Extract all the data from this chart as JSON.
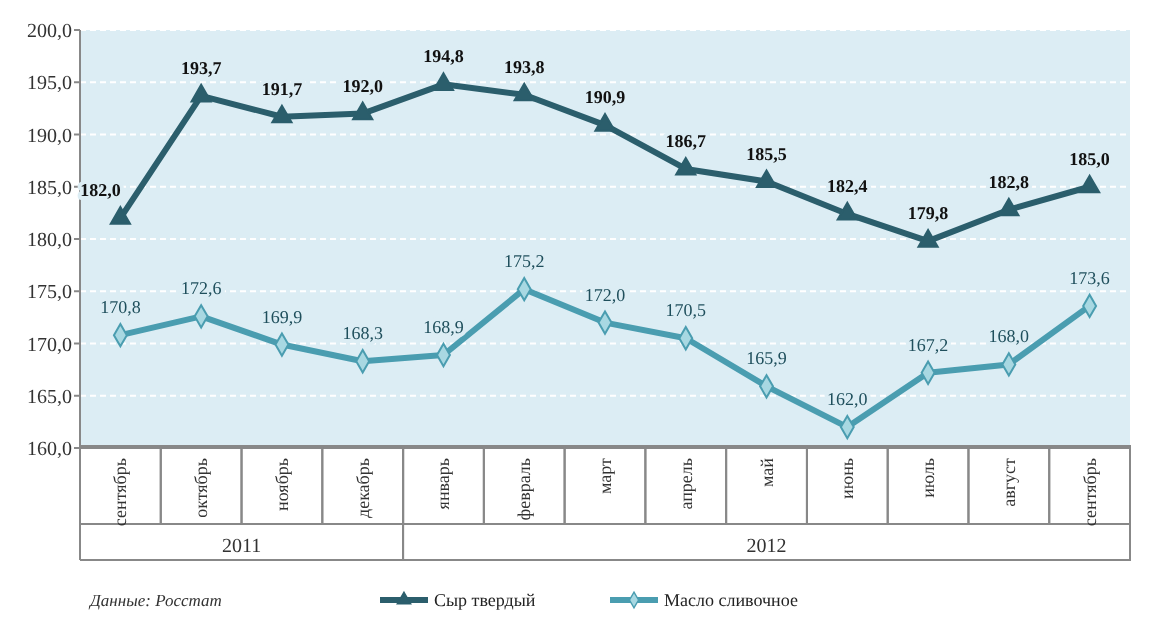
{
  "chart_data": {
    "type": "line",
    "categories": [
      "сентябрь",
      "октябрь",
      "ноябрь",
      "декабрь",
      "январь",
      "февраль",
      "март",
      "апрель",
      "май",
      "июнь",
      "июль",
      "август",
      "сентябрь"
    ],
    "series": [
      {
        "name": "Сыр твердый",
        "color": "#2b5e6c",
        "marker": "triangle",
        "values": [
          182.0,
          193.7,
          191.7,
          192.0,
          194.8,
          193.8,
          190.9,
          186.7,
          185.5,
          182.4,
          179.8,
          182.8,
          185.0
        ],
        "value_labels": [
          "182,0",
          "193,7",
          "191,7",
          "192,0",
          "194,8",
          "193,8",
          "190,9",
          "186,7",
          "185,5",
          "182,4",
          "179,8",
          "182,8",
          "185,0"
        ]
      },
      {
        "name": "Масло сливочное",
        "color": "#4a9db0",
        "marker": "diamond",
        "values": [
          170.8,
          172.6,
          169.9,
          168.3,
          168.9,
          175.2,
          172.0,
          170.5,
          165.9,
          162.0,
          167.2,
          168.0,
          173.6
        ],
        "value_labels": [
          "170,8",
          "172,6",
          "169,9",
          "168,3",
          "168,9",
          "175,2",
          "172,0",
          "170,5",
          "165,9",
          "162,0",
          "167,2",
          "168,0",
          "173,6"
        ]
      }
    ],
    "ylim": [
      160,
      200
    ],
    "yticks": [
      {
        "value": 160,
        "label": "160,0"
      },
      {
        "value": 165,
        "label": "165,0"
      },
      {
        "value": 170,
        "label": "170,0"
      },
      {
        "value": 175,
        "label": "175,0"
      },
      {
        "value": 180,
        "label": "180,0"
      },
      {
        "value": 185,
        "label": "185,0"
      },
      {
        "value": 190,
        "label": "190,0"
      },
      {
        "value": 195,
        "label": "195,0"
      },
      {
        "value": 200,
        "label": "200,0"
      }
    ],
    "grid": "y",
    "data_labels": true,
    "legend": "bottom",
    "annotations": [
      "Данные: Росстат",
      "2011",
      "2012"
    ]
  }
}
